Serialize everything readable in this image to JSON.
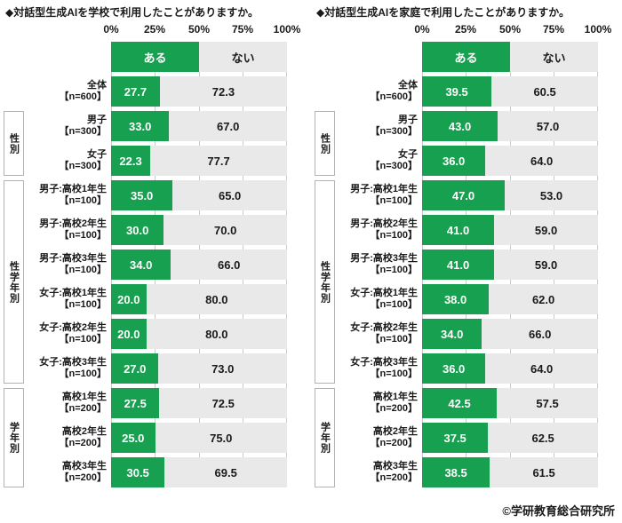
{
  "legend": {
    "yes": "ある",
    "no": "ない"
  },
  "axis": {
    "ticks": [
      "0%",
      "25%",
      "50%",
      "75%",
      "100%"
    ]
  },
  "groups": [
    {
      "label": "性別"
    },
    {
      "label": "性学年別"
    },
    {
      "label": "学年別"
    }
  ],
  "footer": {
    "credit": "©学研教育総合研究所"
  },
  "colors": {
    "yes": "#17a04f",
    "no": "#e9e9e9",
    "grid": "#c9c9c9",
    "boxborder": "#b3b3b3",
    "text": "#1a1a1a"
  },
  "charts": [
    {
      "title": "◆対話型生成AIを学校で利用したことがありますか。",
      "rows": [
        {
          "label": "全体",
          "n": "【n=600】",
          "yes": "27.7",
          "no": "72.3"
        },
        {
          "label": "男子",
          "n": "【n=300】",
          "yes": "33.0",
          "no": "67.0"
        },
        {
          "label": "女子",
          "n": "【n=300】",
          "yes": "22.3",
          "no": "77.7"
        },
        {
          "label": "男子:高校1年生",
          "n": "【n=100】",
          "yes": "35.0",
          "no": "65.0"
        },
        {
          "label": "男子:高校2年生",
          "n": "【n=100】",
          "yes": "30.0",
          "no": "70.0"
        },
        {
          "label": "男子:高校3年生",
          "n": "【n=100】",
          "yes": "34.0",
          "no": "66.0"
        },
        {
          "label": "女子:高校1年生",
          "n": "【n=100】",
          "yes": "20.0",
          "no": "80.0"
        },
        {
          "label": "女子:高校2年生",
          "n": "【n=100】",
          "yes": "20.0",
          "no": "80.0"
        },
        {
          "label": "女子:高校3年生",
          "n": "【n=100】",
          "yes": "27.0",
          "no": "73.0"
        },
        {
          "label": "高校1年生",
          "n": "【n=200】",
          "yes": "27.5",
          "no": "72.5"
        },
        {
          "label": "高校2年生",
          "n": "【n=200】",
          "yes": "25.0",
          "no": "75.0"
        },
        {
          "label": "高校3年生",
          "n": "【n=200】",
          "yes": "30.5",
          "no": "69.5"
        }
      ]
    },
    {
      "title": "◆対話型生成AIを家庭で利用したことがありますか。",
      "rows": [
        {
          "label": "全体",
          "n": "【n=600】",
          "yes": "39.5",
          "no": "60.5"
        },
        {
          "label": "男子",
          "n": "【n=300】",
          "yes": "43.0",
          "no": "57.0"
        },
        {
          "label": "女子",
          "n": "【n=300】",
          "yes": "36.0",
          "no": "64.0"
        },
        {
          "label": "男子:高校1年生",
          "n": "【n=100】",
          "yes": "47.0",
          "no": "53.0"
        },
        {
          "label": "男子:高校2年生",
          "n": "【n=100】",
          "yes": "41.0",
          "no": "59.0"
        },
        {
          "label": "男子:高校3年生",
          "n": "【n=100】",
          "yes": "41.0",
          "no": "59.0"
        },
        {
          "label": "女子:高校1年生",
          "n": "【n=100】",
          "yes": "38.0",
          "no": "62.0"
        },
        {
          "label": "女子:高校2年生",
          "n": "【n=100】",
          "yes": "34.0",
          "no": "66.0"
        },
        {
          "label": "女子:高校3年生",
          "n": "【n=100】",
          "yes": "36.0",
          "no": "64.0"
        },
        {
          "label": "高校1年生",
          "n": "【n=200】",
          "yes": "42.5",
          "no": "57.5"
        },
        {
          "label": "高校2年生",
          "n": "【n=200】",
          "yes": "37.5",
          "no": "62.5"
        },
        {
          "label": "高校3年生",
          "n": "【n=200】",
          "yes": "38.5",
          "no": "61.5"
        }
      ]
    }
  ],
  "chart_data": [
    {
      "type": "bar",
      "orientation": "horizontal",
      "stacked": true,
      "title": "対話型生成AIを学校で利用したことがありますか。",
      "categories": [
        "全体【n=600】",
        "男子【n=300】",
        "女子【n=300】",
        "男子:高校1年生【n=100】",
        "男子:高校2年生【n=100】",
        "男子:高校3年生【n=100】",
        "女子:高校1年生【n=100】",
        "女子:高校2年生【n=100】",
        "女子:高校3年生【n=100】",
        "高校1年生【n=200】",
        "高校2年生【n=200】",
        "高校3年生【n=200】"
      ],
      "category_groups": [
        {
          "label": "性別",
          "rows": [
            1,
            2
          ]
        },
        {
          "label": "性学年別",
          "rows": [
            3,
            8
          ]
        },
        {
          "label": "学年別",
          "rows": [
            9,
            11
          ]
        }
      ],
      "series": [
        {
          "name": "ある",
          "color": "#17a04f",
          "values": [
            27.7,
            33.0,
            22.3,
            35.0,
            30.0,
            34.0,
            20.0,
            20.0,
            27.0,
            27.5,
            25.0,
            30.5
          ]
        },
        {
          "name": "ない",
          "color": "#e9e9e9",
          "values": [
            72.3,
            67.0,
            77.7,
            65.0,
            70.0,
            66.0,
            80.0,
            80.0,
            73.0,
            72.5,
            75.0,
            69.5
          ]
        }
      ],
      "xlim": [
        0,
        100
      ],
      "x_ticks": [
        "0%",
        "25%",
        "50%",
        "75%",
        "100%"
      ],
      "grid": true,
      "legend_position": "top"
    },
    {
      "type": "bar",
      "orientation": "horizontal",
      "stacked": true,
      "title": "対話型生成AIを家庭で利用したことがありますか。",
      "categories": [
        "全体【n=600】",
        "男子【n=300】",
        "女子【n=300】",
        "男子:高校1年生【n=100】",
        "男子:高校2年生【n=100】",
        "男子:高校3年生【n=100】",
        "女子:高校1年生【n=100】",
        "女子:高校2年生【n=100】",
        "女子:高校3年生【n=100】",
        "高校1年生【n=200】",
        "高校2年生【n=200】",
        "高校3年生【n=200】"
      ],
      "category_groups": [
        {
          "label": "性別",
          "rows": [
            1,
            2
          ]
        },
        {
          "label": "性学年別",
          "rows": [
            3,
            8
          ]
        },
        {
          "label": "学年別",
          "rows": [
            9,
            11
          ]
        }
      ],
      "series": [
        {
          "name": "ある",
          "color": "#17a04f",
          "values": [
            39.5,
            43.0,
            36.0,
            47.0,
            41.0,
            41.0,
            38.0,
            34.0,
            36.0,
            42.5,
            37.5,
            38.5
          ]
        },
        {
          "name": "ない",
          "color": "#e9e9e9",
          "values": [
            60.5,
            57.0,
            64.0,
            53.0,
            59.0,
            59.0,
            62.0,
            66.0,
            64.0,
            57.5,
            62.5,
            61.5
          ]
        }
      ],
      "xlim": [
        0,
        100
      ],
      "x_ticks": [
        "0%",
        "25%",
        "50%",
        "75%",
        "100%"
      ],
      "grid": true,
      "legend_position": "top"
    }
  ]
}
